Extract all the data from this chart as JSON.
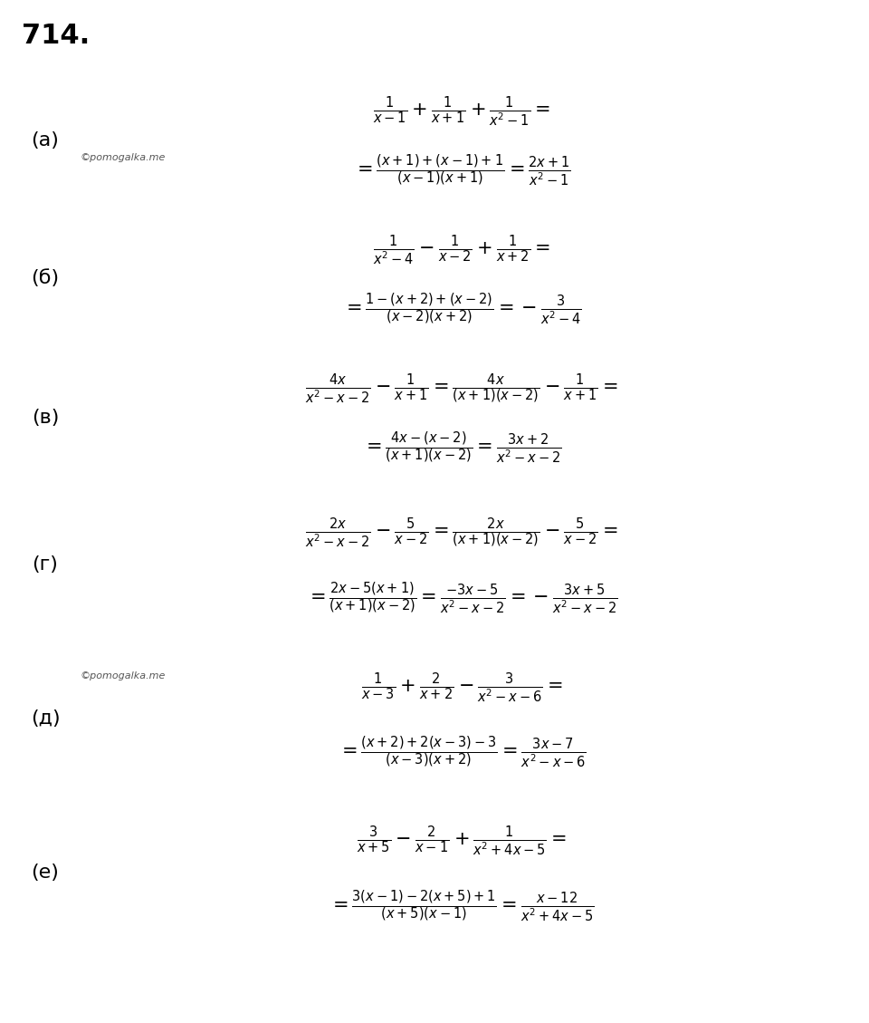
{
  "title": "714.",
  "bg_color": "#ffffff",
  "gray_color": "#e8e8e8",
  "watermark": "©pomogalka.me",
  "label_font_size": 16,
  "math_font_size": 15,
  "wm_font_size": 8,
  "sections": [
    {
      "label": "(а)",
      "bg": "#ffffff",
      "line1": "\\frac{1}{x-1}+\\frac{1}{x+1}+\\frac{1}{x^2-1}=",
      "line2": "=\\frac{(x+1)+(x-1)+1}{(x-1)(x+1)}=\\frac{2x+1}{x^2-1}",
      "wm_on_line": 2
    },
    {
      "label": "(б)",
      "bg": "#e8e8e8",
      "line1": "\\frac{1}{x^2-4}-\\frac{1}{x-2}+\\frac{1}{x+2}=",
      "line2": "=\\frac{1-(x+2)+(x-2)}{(x-2)(x+2)}=-\\frac{3}{x^2-4}",
      "wm_on_line": null
    },
    {
      "label": "(в)",
      "bg": "#ffffff",
      "line1": "\\frac{4x}{x^2-x-2}-\\frac{1}{x+1}=\\frac{4x}{(x+1)(x-2)}-\\frac{1}{x+1}=",
      "line2": "=\\frac{4x-(x-2)}{(x+1)(x-2)}=\\frac{3x+2}{x^2-x-2}",
      "wm_on_line": null
    },
    {
      "label": "(г)",
      "bg": "#e8e8e8",
      "line1": "\\frac{2x}{x^2-x-2}-\\frac{5}{x-2}=\\frac{2x}{(x+1)(x-2)}-\\frac{5}{x-2}=",
      "line2": "=\\frac{2x-5(x+1)}{(x+1)(x-2)}=\\frac{-3x-5}{x^2-x-2}=-\\frac{3x+5}{x^2-x-2}",
      "wm_on_line": null
    },
    {
      "label": "(д)",
      "bg": "#ffffff",
      "line1": "\\frac{1}{x-3}+\\frac{2}{x+2}-\\frac{3}{x^2-x-6}=",
      "line2": "=\\frac{(x+2)+2(x-3)-3}{(x-3)(x+2)}=\\frac{3x-7}{x^2-x-6}",
      "wm_on_line": 1
    },
    {
      "label": "(е)",
      "bg": "#ffffff",
      "line1": "\\frac{3}{x+5}-\\frac{2}{x-1}+\\frac{1}{x^2+4x-5}=",
      "line2": "=\\frac{3(x-1)-2(x+5)+1}{(x+5)(x-1)}=\\frac{x-12}{x^2+4x-5}",
      "wm_on_line": null
    }
  ]
}
